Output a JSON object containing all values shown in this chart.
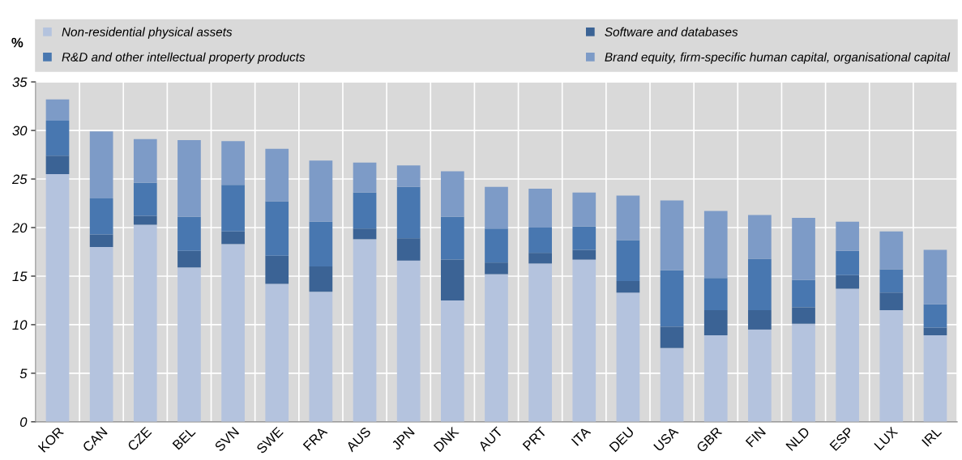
{
  "chart_data": {
    "type": "bar",
    "stacked": true,
    "ylabel": "%",
    "categories": [
      "KOR",
      "CAN",
      "CZE",
      "BEL",
      "SVN",
      "SWE",
      "FRA",
      "AUS",
      "JPN",
      "DNK",
      "AUT",
      "PRT",
      "ITA",
      "DEU",
      "USA",
      "GBR",
      "FIN",
      "NLD",
      "ESP",
      "LUX",
      "IRL"
    ],
    "series": [
      {
        "name": "Non-residential physical assets",
        "color": "#b4c3de",
        "values": [
          25.5,
          18.0,
          20.3,
          15.9,
          18.3,
          14.2,
          13.4,
          18.8,
          16.6,
          12.5,
          15.2,
          16.3,
          16.7,
          13.3,
          7.6,
          8.9,
          9.5,
          10.1,
          13.7,
          11.5,
          8.9
        ]
      },
      {
        "name": "Software and databases",
        "color": "#3b6395",
        "values": [
          1.9,
          1.3,
          0.9,
          1.7,
          1.3,
          2.9,
          2.6,
          1.1,
          2.3,
          4.2,
          1.2,
          1.1,
          1.0,
          1.2,
          2.2,
          2.6,
          2.0,
          1.7,
          1.4,
          1.8,
          0.8
        ]
      },
      {
        "name": "R&D and other intellectual property products",
        "color": "#4877b0",
        "values": [
          3.6,
          3.7,
          3.4,
          3.5,
          4.8,
          5.6,
          4.6,
          3.7,
          5.3,
          4.4,
          3.5,
          2.6,
          2.4,
          4.2,
          5.8,
          3.3,
          5.3,
          2.8,
          2.5,
          2.4,
          2.4
        ]
      },
      {
        "name": "Brand equity, firm-specific human capital, organisational capital",
        "color": "#7d9bc7",
        "values": [
          2.2,
          6.9,
          4.5,
          7.9,
          4.5,
          5.4,
          6.3,
          3.1,
          2.2,
          4.7,
          4.3,
          4.0,
          3.5,
          4.6,
          7.2,
          6.9,
          4.5,
          6.4,
          3.0,
          3.9,
          5.6
        ]
      }
    ],
    "ylim": [
      0,
      35
    ],
    "yticks": [
      0,
      5,
      10,
      15,
      20,
      25,
      30,
      35
    ],
    "grid": true,
    "legend": "top"
  }
}
